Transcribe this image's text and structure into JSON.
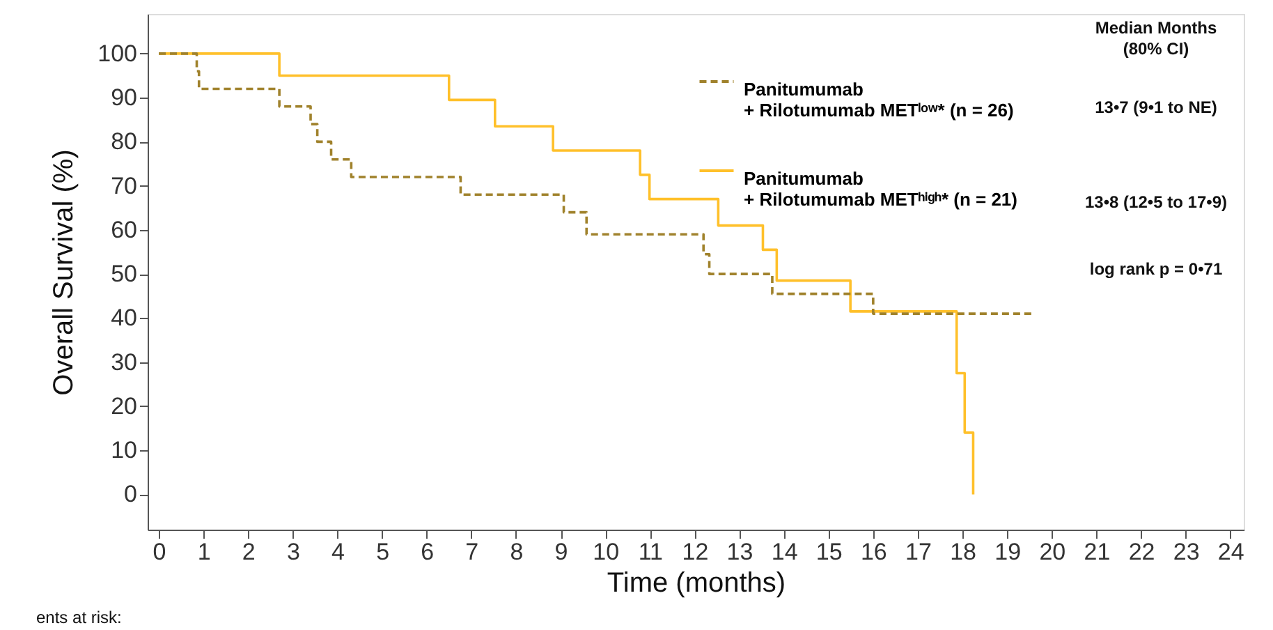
{
  "chart_data": {
    "type": "step",
    "xlabel": "Time (months)",
    "ylabel": "Overall Survival (%)",
    "xlim": [
      -0.25,
      24.3
    ],
    "xticks": [
      0,
      1,
      2,
      3,
      4,
      5,
      6,
      7,
      8,
      9,
      10,
      11,
      12,
      13,
      14,
      15,
      16,
      17,
      18,
      19,
      20,
      21,
      22,
      23,
      24
    ],
    "ylim": [
      -8,
      109
    ],
    "yticks": [
      0,
      10,
      20,
      30,
      40,
      50,
      60,
      70,
      80,
      90,
      100
    ],
    "grid": false,
    "legend": "top right",
    "series": [
      {
        "name": "Panitumumab\n+ Rilotumumab METˡᵒʷ* (n = 26)",
        "color": "#a0822c",
        "line_style": "dashed",
        "x": [
          0,
          0.85,
          0.9,
          2.7,
          3.4,
          3.55,
          3.86,
          4.31,
          6.76,
          9.07,
          9.58,
          12.2,
          12.33,
          13.74,
          16.0,
          19.6
        ],
        "values": [
          100,
          96,
          92,
          88,
          84,
          80,
          76,
          72,
          68,
          64,
          59,
          54.5,
          50,
          45.5,
          41,
          41
        ]
      },
      {
        "name": "Panitumumab\n+ Rilotumumab METʰⁱᵍʰ* (n = 21)",
        "color": "#ffc02a",
        "line_style": "solid",
        "x": [
          0,
          2.7,
          6.5,
          7.53,
          8.83,
          10.78,
          10.99,
          12.53,
          13.53,
          13.84,
          15.49,
          17.87,
          18.05,
          18.24
        ],
        "values": [
          100,
          95,
          89.5,
          83.5,
          78,
          72.5,
          67,
          61,
          55.5,
          48.5,
          41.5,
          27.5,
          14,
          0
        ]
      }
    ],
    "annotations": [
      "Median Months\n(80% CI)",
      "13•7 (9•1 to NE)",
      "13•8 (12•5 to 17•9)",
      "log rank p = 0•71",
      "ents at risk:"
    ]
  }
}
